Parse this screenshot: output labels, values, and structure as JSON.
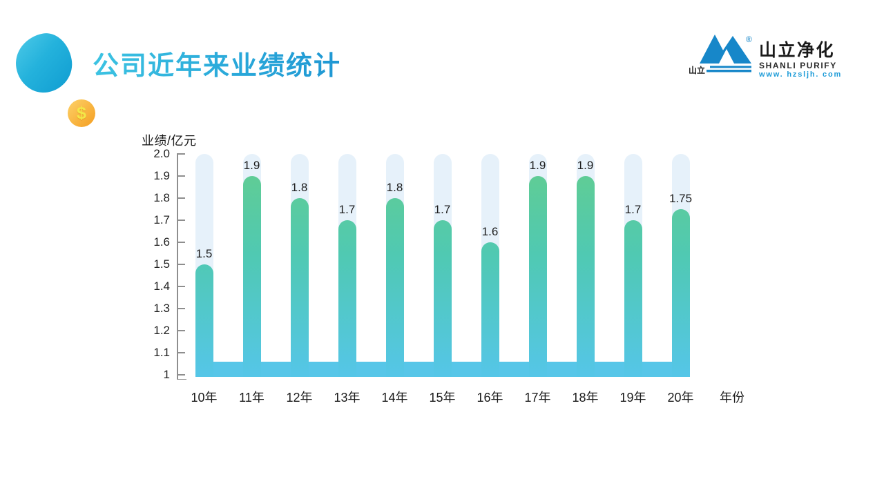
{
  "header": {
    "title": "公司近年来业绩统计"
  },
  "decor": {
    "coin_symbol": "$",
    "blob_color_top": "#47c6e6",
    "blob_color_bottom": "#13a0d3",
    "coin_color": "#f6a82f"
  },
  "logo": {
    "mark_text": "山立",
    "registered": "®",
    "name_cn": "山立净化",
    "name_en": "SHANLI PURIFY",
    "website": "www. hzsljh. com",
    "brand_blue": "#1787c9"
  },
  "chart_data": {
    "type": "bar",
    "title": "",
    "ylabel": "业绩/亿元",
    "xlabel": "年份",
    "categories": [
      "10年",
      "11年",
      "12年",
      "13年",
      "14年",
      "15年",
      "16年",
      "17年",
      "18年",
      "19年",
      "20年"
    ],
    "values": [
      1.5,
      1.9,
      1.8,
      1.7,
      1.8,
      1.7,
      1.6,
      1.9,
      1.9,
      1.7,
      1.75
    ],
    "value_labels": [
      "1.5",
      "1.9",
      "1.8",
      "1.7",
      "1.8",
      "1.7",
      "1.6",
      "1.9",
      "1.9",
      "1.7",
      "1.75"
    ],
    "ylim": [
      1,
      2
    ],
    "y_ticks": [
      "2.0",
      "1.9",
      "1.8",
      "1.7",
      "1.6",
      "1.5",
      "1.4",
      "1.3",
      "1.2",
      "1.1",
      "1"
    ],
    "grid": false,
    "legend": null,
    "colors": {
      "bar_gradient_top": "#63cd8e",
      "bar_gradient_bottom": "#55c6e8",
      "track": "#e6f1fa",
      "connector": "#57c6e8",
      "axis": "#8e8e8e",
      "label": "#1c1c1c"
    }
  }
}
